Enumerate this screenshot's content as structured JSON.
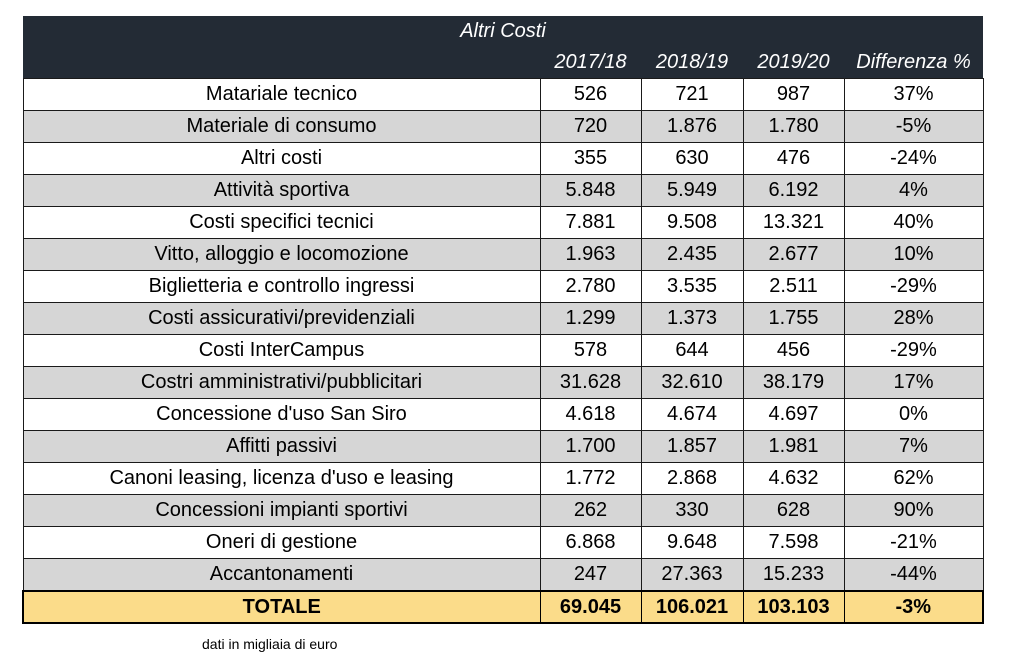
{
  "table": {
    "title": "Altri Costi",
    "columns": [
      "",
      "2017/18",
      "2018/19",
      "2019/20",
      "Differenza %"
    ],
    "rows": [
      [
        "Matariale tecnico",
        "526",
        "721",
        "987",
        "37%"
      ],
      [
        "Materiale di consumo",
        "720",
        "1.876",
        "1.780",
        "-5%"
      ],
      [
        "Altri costi",
        "355",
        "630",
        "476",
        "-24%"
      ],
      [
        "Attività sportiva",
        "5.848",
        "5.949",
        "6.192",
        "4%"
      ],
      [
        "Costi specifici tecnici",
        "7.881",
        "9.508",
        "13.321",
        "40%"
      ],
      [
        "Vitto, alloggio e locomozione",
        "1.963",
        "2.435",
        "2.677",
        "10%"
      ],
      [
        "Biglietteria e controllo ingressi",
        "2.780",
        "3.535",
        "2.511",
        "-29%"
      ],
      [
        "Costi assicurativi/previdenziali",
        "1.299",
        "1.373",
        "1.755",
        "28%"
      ],
      [
        "Costi InterCampus",
        "578",
        "644",
        "456",
        "-29%"
      ],
      [
        "Costri amministrativi/pubblicitari",
        "31.628",
        "32.610",
        "38.179",
        "17%"
      ],
      [
        "Concessione d'uso San Siro",
        "4.618",
        "4.674",
        "4.697",
        "0%"
      ],
      [
        "Affitti passivi",
        "1.700",
        "1.857",
        "1.981",
        "7%"
      ],
      [
        "Canoni leasing, licenza d'uso e leasing",
        "1.772",
        "2.868",
        "4.632",
        "62%"
      ],
      [
        "Concessioni impianti sportivi",
        "262",
        "330",
        "628",
        "90%"
      ],
      [
        "Oneri di gestione",
        "6.868",
        "9.648",
        "7.598",
        "-21%"
      ],
      [
        "Accantonamenti",
        "247",
        "27.363",
        "15.233",
        "-44%"
      ]
    ],
    "total": [
      "TOTALE",
      "69.045",
      "106.021",
      "103.103",
      "-3%"
    ]
  },
  "footnote": "dati in migliaia di euro",
  "colors": {
    "header_bg": "#232b35",
    "header_text": "#ffffff",
    "alt_row_bg": "#d6d6d6",
    "total_bg": "#fbdc8a"
  }
}
